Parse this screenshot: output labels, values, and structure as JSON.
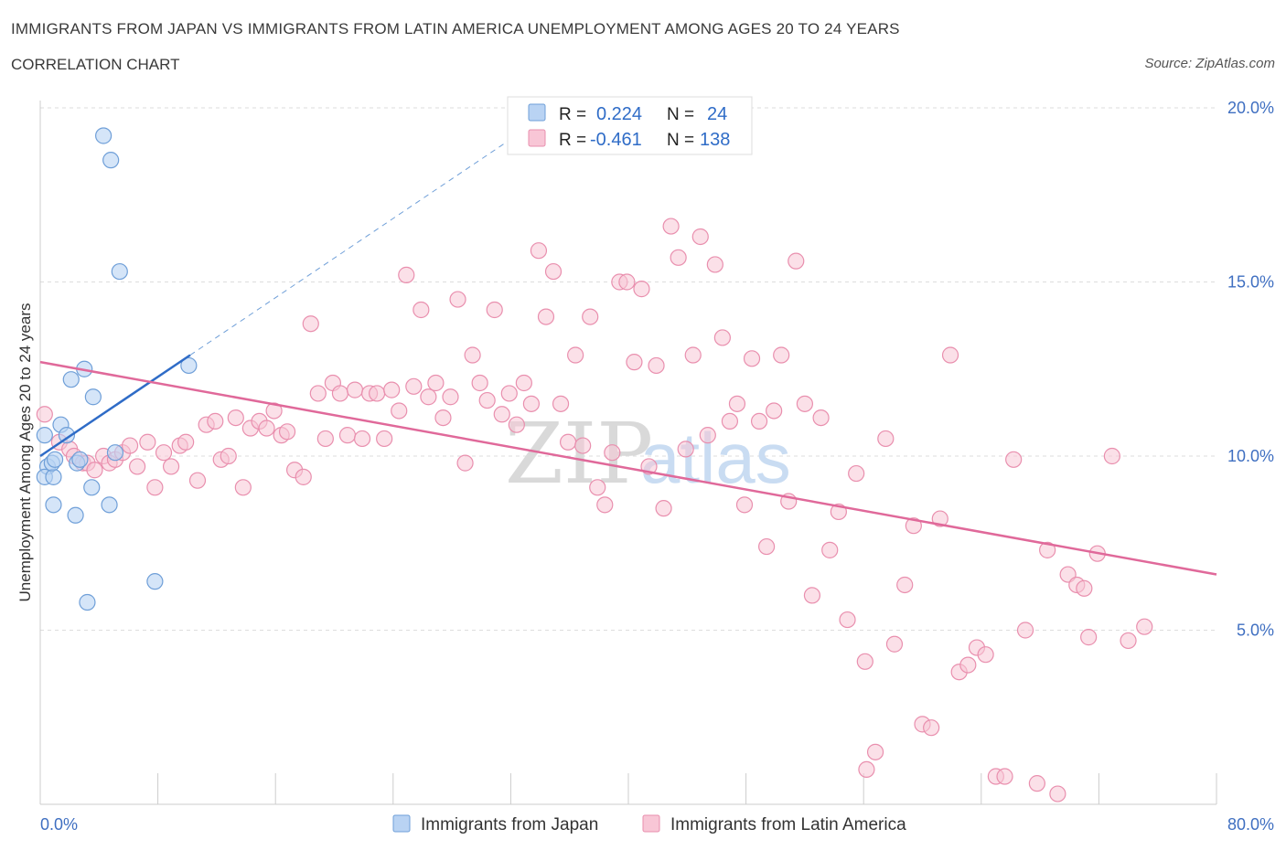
{
  "title": "IMMIGRANTS FROM JAPAN VS IMMIGRANTS FROM LATIN AMERICA UNEMPLOYMENT AMONG AGES 20 TO 24 YEARS",
  "subtitle": "CORRELATION CHART",
  "source": "Source: ZipAtlas.com",
  "watermark": {
    "zip": "ZIP",
    "atlas": "atlas"
  },
  "legend": {
    "r_label": "R =",
    "n_label": "N =",
    "japan": {
      "r": "0.224",
      "n": "24"
    },
    "latin": {
      "r": "-0.461",
      "n": "138"
    }
  },
  "colors": {
    "japan_fill": "#b9d3f3",
    "japan_stroke": "#6f9fd8",
    "japan_line": "#2f6cc7",
    "latin_fill": "#f8c6d6",
    "latin_stroke": "#e98fae",
    "latin_line": "#e0699a",
    "grid": "#dddddd",
    "tick_text": "#3f6fc1"
  },
  "chart_data": {
    "type": "scatter",
    "title": "IMMIGRANTS FROM JAPAN VS IMMIGRANTS FROM LATIN AMERICA UNEMPLOYMENT AMONG AGES 20 TO 24 YEARS",
    "xlabel": "",
    "ylabel": "Unemployment Among Ages 20 to 24 years",
    "xlim": [
      0,
      80
    ],
    "ylim": [
      0,
      20
    ],
    "x_tick_labels": [
      "0.0%",
      "80.0%"
    ],
    "y_ticks": [
      {
        "value": 5,
        "label": "5.0%"
      },
      {
        "value": 10,
        "label": "10.0%"
      },
      {
        "value": 15,
        "label": "15.0%"
      },
      {
        "value": 20,
        "label": "20.0%"
      }
    ],
    "legend_position": "bottom-center",
    "series": [
      {
        "name": "Immigrants from Japan",
        "r": 0.224,
        "n": 24,
        "trend": {
          "x0": 0,
          "y0": 10.0,
          "x1": 10.2,
          "y1": 12.9,
          "extend_to_x": 32.5
        },
        "points": [
          [
            0.3,
            10.6
          ],
          [
            0.5,
            9.7
          ],
          [
            0.3,
            9.4
          ],
          [
            0.9,
            9.4
          ],
          [
            0.8,
            9.8
          ],
          [
            1.0,
            9.9
          ],
          [
            1.4,
            10.9
          ],
          [
            1.8,
            10.6
          ],
          [
            2.5,
            9.8
          ],
          [
            2.7,
            9.9
          ],
          [
            2.1,
            12.2
          ],
          [
            3.0,
            12.5
          ],
          [
            3.6,
            11.7
          ],
          [
            3.5,
            9.1
          ],
          [
            2.4,
            8.3
          ],
          [
            0.9,
            8.6
          ],
          [
            4.7,
            8.6
          ],
          [
            3.2,
            5.8
          ],
          [
            7.8,
            6.4
          ],
          [
            5.1,
            10.1
          ],
          [
            5.4,
            15.3
          ],
          [
            4.3,
            19.2
          ],
          [
            4.8,
            18.5
          ],
          [
            10.1,
            12.6
          ]
        ]
      },
      {
        "name": "Immigrants from Latin America",
        "r": -0.461,
        "n": 138,
        "trend": {
          "x0": 0,
          "y0": 12.7,
          "x1": 80,
          "y1": 6.6
        },
        "points": [
          [
            0.3,
            11.2
          ],
          [
            1.3,
            10.4
          ],
          [
            2.0,
            10.2
          ],
          [
            2.3,
            10.0
          ],
          [
            2.9,
            9.8
          ],
          [
            3.2,
            9.8
          ],
          [
            3.7,
            9.6
          ],
          [
            4.3,
            10.0
          ],
          [
            4.7,
            9.8
          ],
          [
            5.1,
            9.9
          ],
          [
            5.6,
            10.1
          ],
          [
            6.1,
            10.3
          ],
          [
            6.6,
            9.7
          ],
          [
            7.3,
            10.4
          ],
          [
            7.8,
            9.1
          ],
          [
            8.4,
            10.1
          ],
          [
            8.9,
            9.7
          ],
          [
            9.5,
            10.3
          ],
          [
            9.9,
            10.4
          ],
          [
            10.7,
            9.3
          ],
          [
            11.3,
            10.9
          ],
          [
            11.9,
            11.0
          ],
          [
            12.3,
            9.9
          ],
          [
            12.8,
            10.0
          ],
          [
            13.3,
            11.1
          ],
          [
            13.8,
            9.1
          ],
          [
            14.3,
            10.8
          ],
          [
            14.9,
            11.0
          ],
          [
            15.4,
            10.8
          ],
          [
            15.9,
            11.3
          ],
          [
            16.4,
            10.6
          ],
          [
            16.8,
            10.7
          ],
          [
            17.3,
            9.6
          ],
          [
            17.9,
            9.4
          ],
          [
            18.4,
            13.8
          ],
          [
            18.9,
            11.8
          ],
          [
            19.4,
            10.5
          ],
          [
            19.9,
            12.1
          ],
          [
            20.4,
            11.8
          ],
          [
            20.9,
            10.6
          ],
          [
            21.4,
            11.9
          ],
          [
            21.9,
            10.5
          ],
          [
            22.4,
            11.8
          ],
          [
            22.9,
            11.8
          ],
          [
            23.4,
            10.5
          ],
          [
            23.9,
            11.9
          ],
          [
            24.4,
            11.3
          ],
          [
            24.9,
            15.2
          ],
          [
            25.4,
            12.0
          ],
          [
            25.9,
            14.2
          ],
          [
            26.4,
            11.7
          ],
          [
            26.9,
            12.1
          ],
          [
            27.4,
            11.1
          ],
          [
            27.9,
            11.7
          ],
          [
            28.4,
            14.5
          ],
          [
            28.9,
            9.8
          ],
          [
            29.4,
            12.9
          ],
          [
            29.9,
            12.1
          ],
          [
            30.4,
            11.6
          ],
          [
            30.9,
            14.2
          ],
          [
            31.4,
            11.2
          ],
          [
            31.9,
            11.8
          ],
          [
            32.4,
            10.9
          ],
          [
            32.9,
            12.1
          ],
          [
            33.4,
            11.5
          ],
          [
            33.9,
            15.9
          ],
          [
            34.4,
            14.0
          ],
          [
            34.9,
            15.3
          ],
          [
            35.4,
            11.5
          ],
          [
            35.9,
            10.4
          ],
          [
            36.4,
            12.9
          ],
          [
            36.9,
            10.3
          ],
          [
            37.4,
            14.0
          ],
          [
            37.9,
            9.1
          ],
          [
            38.4,
            8.6
          ],
          [
            38.9,
            10.1
          ],
          [
            39.4,
            15.0
          ],
          [
            39.9,
            15.0
          ],
          [
            40.4,
            12.7
          ],
          [
            40.9,
            14.8
          ],
          [
            41.4,
            9.7
          ],
          [
            41.9,
            12.6
          ],
          [
            42.4,
            8.5
          ],
          [
            42.9,
            16.6
          ],
          [
            43.4,
            15.7
          ],
          [
            43.9,
            10.2
          ],
          [
            44.4,
            12.9
          ],
          [
            44.9,
            16.3
          ],
          [
            45.4,
            10.6
          ],
          [
            45.9,
            15.5
          ],
          [
            46.4,
            13.4
          ],
          [
            46.9,
            11.0
          ],
          [
            47.4,
            11.5
          ],
          [
            47.9,
            8.6
          ],
          [
            48.4,
            12.8
          ],
          [
            48.9,
            11.0
          ],
          [
            49.4,
            7.4
          ],
          [
            49.9,
            11.3
          ],
          [
            50.4,
            12.9
          ],
          [
            50.9,
            8.7
          ],
          [
            51.4,
            15.6
          ],
          [
            52.0,
            11.5
          ],
          [
            52.5,
            6.0
          ],
          [
            53.1,
            11.1
          ],
          [
            53.7,
            7.3
          ],
          [
            54.3,
            8.4
          ],
          [
            54.9,
            5.3
          ],
          [
            55.5,
            9.5
          ],
          [
            56.1,
            4.1
          ],
          [
            56.8,
            1.5
          ],
          [
            57.5,
            10.5
          ],
          [
            58.1,
            4.6
          ],
          [
            58.8,
            6.3
          ],
          [
            59.4,
            8.0
          ],
          [
            60.0,
            2.3
          ],
          [
            60.6,
            2.2
          ],
          [
            61.2,
            8.2
          ],
          [
            61.9,
            12.9
          ],
          [
            62.5,
            3.8
          ],
          [
            63.1,
            4.0
          ],
          [
            63.7,
            4.5
          ],
          [
            64.3,
            4.3
          ],
          [
            65.0,
            0.8
          ],
          [
            65.6,
            0.8
          ],
          [
            66.2,
            9.9
          ],
          [
            67.0,
            5.0
          ],
          [
            67.8,
            0.6
          ],
          [
            68.5,
            7.3
          ],
          [
            69.2,
            0.3
          ],
          [
            69.9,
            6.6
          ],
          [
            70.5,
            6.3
          ],
          [
            71.3,
            4.8
          ],
          [
            71.9,
            7.2
          ],
          [
            72.9,
            10.0
          ],
          [
            74.0,
            4.7
          ],
          [
            75.1,
            5.1
          ],
          [
            56.2,
            1.0
          ],
          [
            71.0,
            6.2
          ]
        ]
      }
    ]
  }
}
